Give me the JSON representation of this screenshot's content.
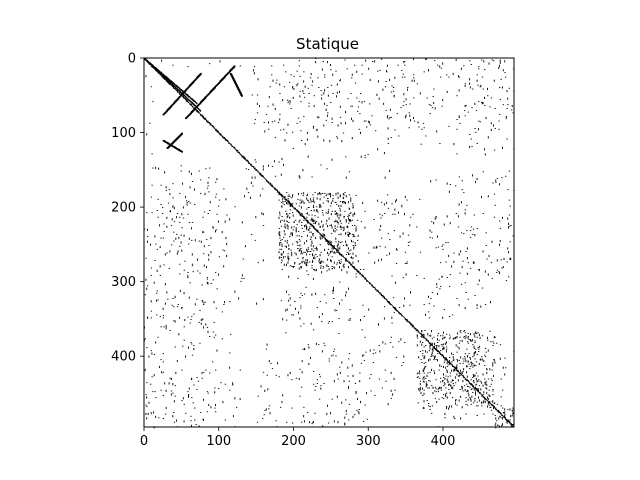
{
  "chart_data": {
    "type": "heatmap",
    "subtype": "sparsity-pattern",
    "title": "Statique",
    "xlabel": "",
    "ylabel": "",
    "matrix_size": 495,
    "xlim": [
      0,
      495
    ],
    "ylim": [
      495,
      0
    ],
    "x_ticks": [
      0,
      100,
      200,
      300,
      400
    ],
    "y_ticks": [
      0,
      100,
      200,
      300,
      400
    ],
    "x_tick_labels": [
      "0",
      "100",
      "200",
      "300",
      "400"
    ],
    "y_tick_labels": [
      "0",
      "100",
      "200",
      "300",
      "400"
    ],
    "grid": false,
    "legend": "none",
    "marker_color": "#000000",
    "background_color": "#ffffff",
    "nonzero_regions": [
      {
        "rows": [
          0,
          495
        ],
        "cols": [
          0,
          495
        ],
        "pattern": "main-diagonal"
      },
      {
        "rows": [
          180,
          280
        ],
        "cols": [
          180,
          285
        ],
        "pattern": "dense-block"
      },
      {
        "rows": [
          365,
          470
        ],
        "cols": [
          365,
          445
        ],
        "pattern": "dense-block"
      },
      {
        "rows": [
          445,
          470
        ],
        "cols": [
          440,
          470
        ],
        "pattern": "dense-block"
      },
      {
        "rows": [
          465,
          495
        ],
        "cols": [
          470,
          495
        ],
        "pattern": "dense-block"
      },
      {
        "rows": [
          0,
          100
        ],
        "cols": [
          150,
          495
        ],
        "pattern": "scattered"
      },
      {
        "rows": [
          280,
          360
        ],
        "cols": [
          180,
          290
        ],
        "pattern": "scattered"
      },
      {
        "rows": [
          180,
          280
        ],
        "cols": [
          310,
          370
        ],
        "pattern": "scattered"
      },
      {
        "rows": [
          140,
          300
        ],
        "cols": [
          0,
          160
        ],
        "pattern": "scattered"
      },
      {
        "rows": [
          300,
          495
        ],
        "cols": [
          0,
          130
        ],
        "pattern": "scattered"
      },
      {
        "rows": [
          150,
          160
        ],
        "cols": [
          290,
          335
        ],
        "pattern": "scattered"
      },
      {
        "rows": [
          290,
          350
        ],
        "cols": [
          330,
          400
        ],
        "pattern": "scattered"
      },
      {
        "rows": [
          210,
          300
        ],
        "cols": [
          390,
          495
        ],
        "pattern": "scattered"
      },
      {
        "rows": [
          380,
          495
        ],
        "cols": [
          150,
          350
        ],
        "pattern": "scattered"
      },
      {
        "rows": [
          0,
          130
        ],
        "cols": [
          0,
          12
        ],
        "pattern": "scattered"
      },
      {
        "rows": [
          380,
          495
        ],
        "cols": [
          470,
          495
        ],
        "pattern": "scattered"
      }
    ],
    "nonzero_segments": [
      {
        "rows": [
          0,
          60
        ],
        "cols": [
          0,
          70
        ],
        "pattern": "off-diagonal-band"
      },
      {
        "rows": [
          0,
          70
        ],
        "cols": [
          0,
          75
        ],
        "pattern": "off-diagonal-band"
      },
      {
        "rows": [
          20,
          75
        ],
        "cols": [
          75,
          25
        ],
        "pattern": "anti-diagonal-band"
      },
      {
        "rows": [
          10,
          80
        ],
        "cols": [
          120,
          55
        ],
        "pattern": "anti-diagonal-band"
      },
      {
        "rows": [
          20,
          50
        ],
        "cols": [
          115,
          130
        ],
        "pattern": "short-stroke"
      },
      {
        "rows": [
          100,
          120
        ],
        "cols": [
          50,
          30
        ],
        "pattern": "short-stroke"
      },
      {
        "rows": [
          110,
          125
        ],
        "cols": [
          25,
          50
        ],
        "pattern": "short-stroke"
      }
    ]
  }
}
